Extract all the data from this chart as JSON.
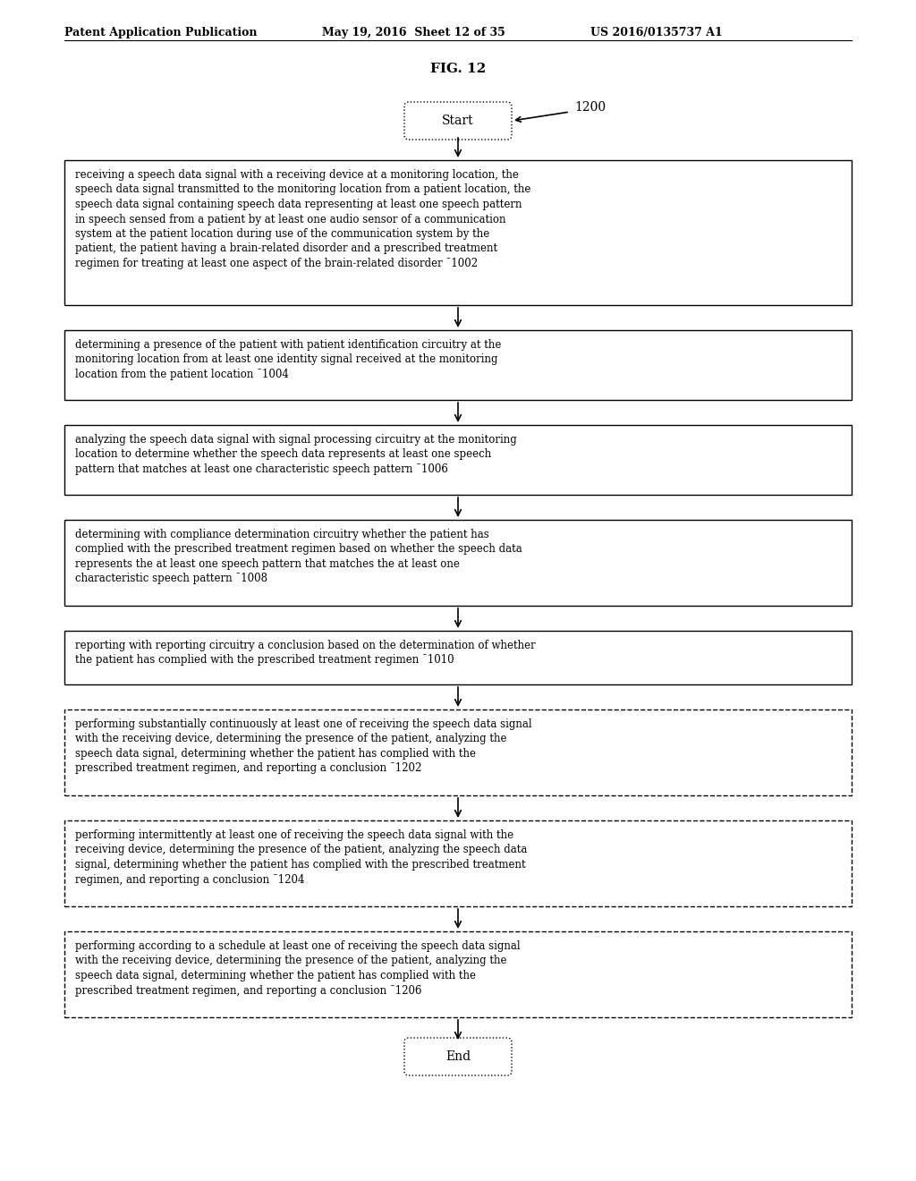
{
  "title": "FIG. 12",
  "header_left": "Patent Application Publication",
  "header_mid": "May 19, 2016  Sheet 12 of 35",
  "header_right": "US 2016/0135737 A1",
  "fig_label": "1200",
  "start_label": "Start",
  "end_label": "End",
  "solid_boxes": [
    {
      "text": "receiving a speech data signal with a receiving device at a monitoring location, the speech data signal transmitted to the monitoring location from a patient location, the speech data signal containing speech data representing at least one speech pattern in speech sensed from a patient by at least one audio sensor of a communication system at the patient location during use of the communication system by the patient, the patient having a brain-related disorder and a prescribed treatment regimen for treating at least one aspect of the brain-related disorder 1002",
      "ref": "1002"
    },
    {
      "text": "determining a presence of the patient with patient identification circuitry at the monitoring location from at least one identity signal received at the monitoring location from the patient location 1004",
      "ref": "1004"
    },
    {
      "text": "analyzing the speech data signal with signal processing circuitry at the monitoring location to determine whether the speech data represents at least one speech pattern that matches at least one characteristic speech pattern 1006",
      "ref": "1006"
    },
    {
      "text": "determining with compliance determination circuitry whether the patient has complied with the prescribed treatment regimen based on whether the speech data represents the at least one speech pattern that matches the at least one characteristic speech pattern 1008",
      "ref": "1008"
    },
    {
      "text": "reporting with reporting circuitry a conclusion based on the determination of whether the patient has complied with the prescribed treatment regimen 1010",
      "ref": "1010"
    }
  ],
  "dashed_boxes": [
    {
      "text": "performing substantially continuously at least one of receiving the speech data signal with the receiving device, determining the presence of the patient, analyzing the speech data signal, determining whether the patient has complied with the prescribed treatment regimen, and reporting a conclusion 1202",
      "ref": "1202"
    },
    {
      "text": "performing intermittently at least one of receiving the speech data signal with the receiving device, determining the presence of the patient, analyzing the speech data signal, determining whether the patient has complied with the prescribed treatment regimen, and reporting a conclusion 1204",
      "ref": "1204"
    },
    {
      "text": "performing according to a schedule at least one of receiving the speech data signal with the receiving device, determining the presence of the patient, analyzing the speech data signal, determining whether the patient has complied with the prescribed treatment regimen, and reporting a conclusion 1206",
      "ref": "1206"
    }
  ],
  "bg_color": "#ffffff",
  "box_edge_color": "#000000",
  "text_color": "#000000",
  "font_size": 8.5,
  "header_font_size": 9
}
